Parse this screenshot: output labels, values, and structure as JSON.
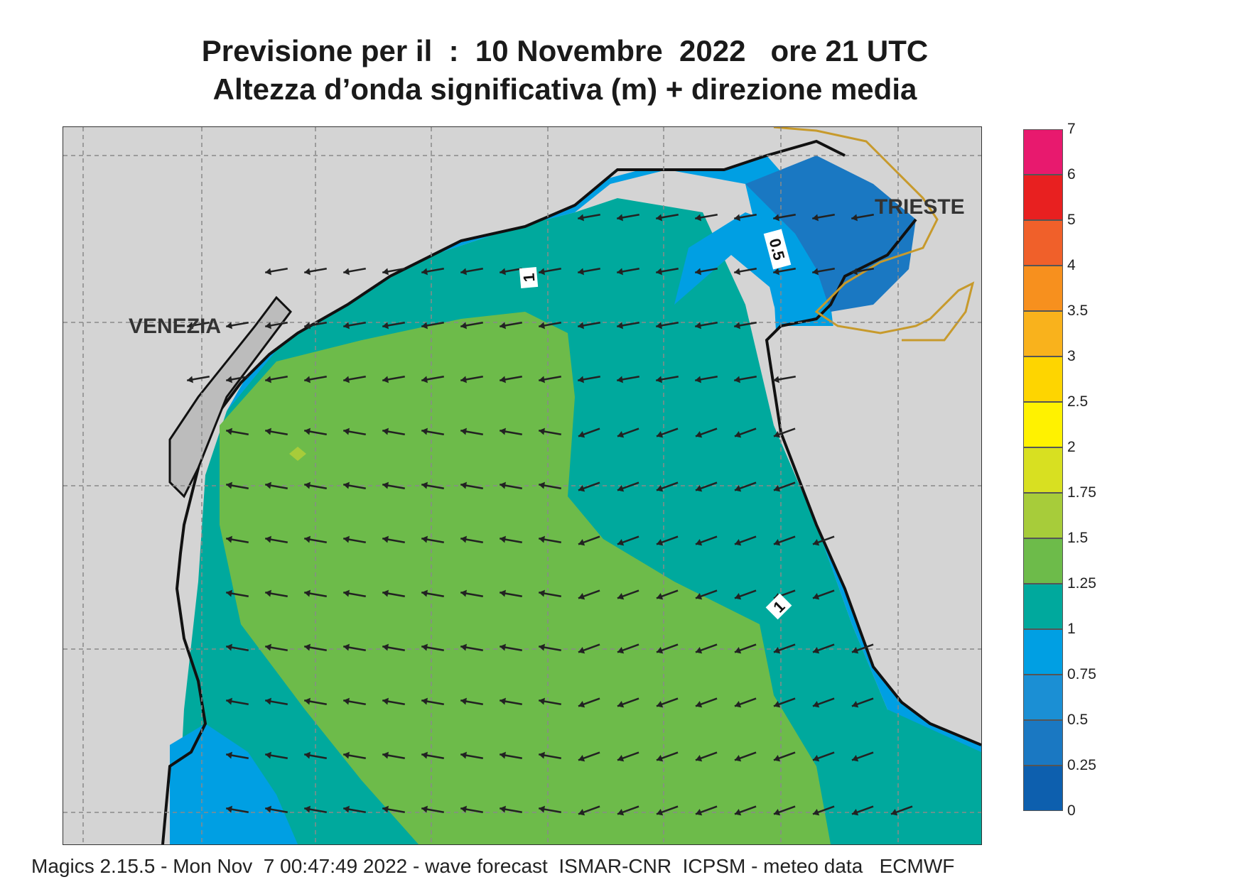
{
  "title": {
    "line1": "Previsione per il  :  10 Novembre  2022   ore 21 UTC",
    "line2": "Altezza d’onda significativa (m) + direzione media"
  },
  "map": {
    "cities": [
      "VENEZIA",
      "TRIESTE"
    ],
    "contour_labels": [
      "1",
      "0.5",
      "1"
    ],
    "arrow_direction": "toward west / west-northwest"
  },
  "legend": {
    "labels": [
      "7",
      "6",
      "5",
      "4",
      "3.5",
      "3",
      "2.5",
      "2",
      "1.75",
      "1.5",
      "1.25",
      "1",
      "0.75",
      "0.5",
      "0.25",
      "0"
    ],
    "colors": [
      "#e8196e",
      "#e82020",
      "#f0602a",
      "#f7901e",
      "#f9b21c",
      "#fed500",
      "#fff200",
      "#d8e021",
      "#a7cc3a",
      "#6dbb4a",
      "#00a99d",
      "#009fe3",
      "#1b8fd4",
      "#1a78c2",
      "#0d5fae"
    ]
  },
  "footer": "Magics 2.15.5 - Mon Nov  7 00:47:49 2022 - wave forecast  ISMAR-CNR  ICPSM - meteo data   ECMWF"
}
